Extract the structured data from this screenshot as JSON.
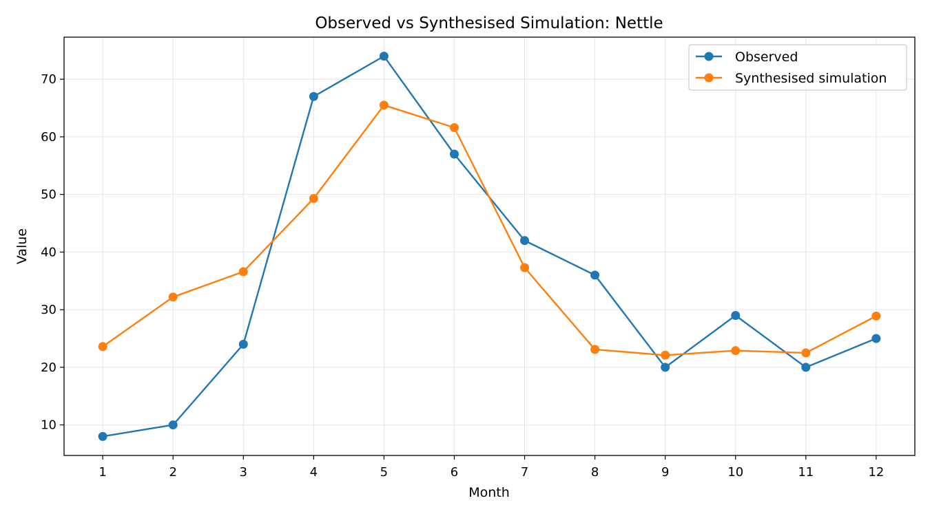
{
  "chart_data": {
    "type": "line",
    "title": "Observed vs Synthesised Simulation: Nettle",
    "xlabel": "Month",
    "ylabel": "Value",
    "x": [
      1,
      2,
      3,
      4,
      5,
      6,
      7,
      8,
      9,
      10,
      11,
      12
    ],
    "xlim": [
      0.45,
      12.55
    ],
    "ylim": [
      4.7,
      77.3
    ],
    "yticks": [
      10,
      20,
      30,
      40,
      50,
      60,
      70
    ],
    "grid": true,
    "legend_position": "top-right",
    "series": [
      {
        "name": "Observed",
        "color": "#1f77b4",
        "values": [
          8,
          10,
          24,
          67,
          74,
          57,
          42,
          36,
          20,
          29,
          20,
          25
        ]
      },
      {
        "name": "Synthesised simulation",
        "color": "#ff7f0e",
        "values": [
          23.6,
          32.2,
          36.6,
          49.3,
          65.5,
          61.6,
          37.3,
          23.1,
          22.1,
          22.9,
          22.5,
          28.9
        ]
      }
    ]
  }
}
